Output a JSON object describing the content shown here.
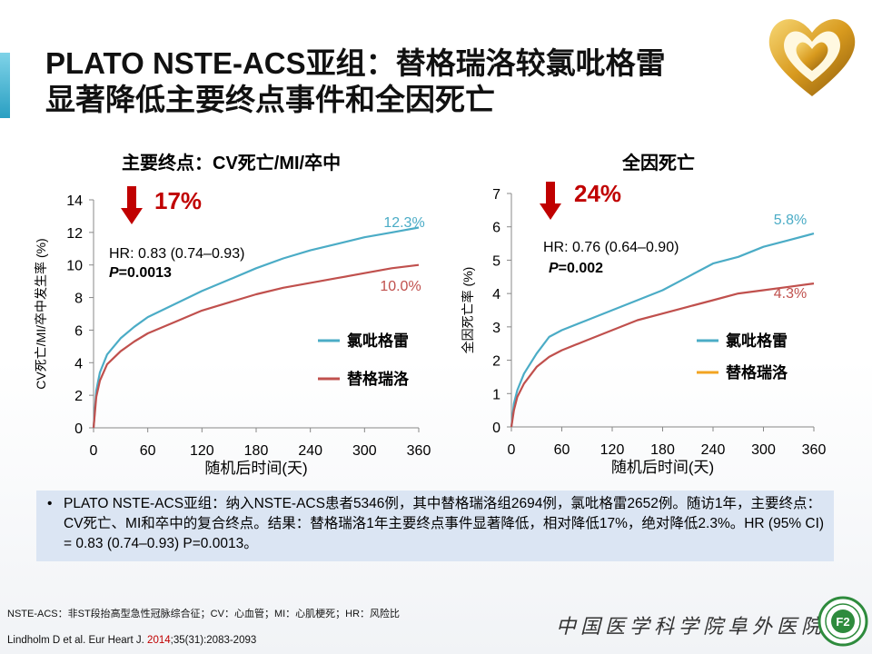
{
  "title_line1": "PLATO NSTE-ACS亚组：替格瑞洛较氯吡格雷",
  "title_line2": "显著降低主要终点事件和全因死亡",
  "colors": {
    "clopidogrel": "#4bacc6",
    "ticagrelor": "#c0504d",
    "ticagrelor_legend_right": "#f2a421",
    "arrow": "#c00000",
    "summary_bg": "#dbe5f3"
  },
  "icons": {
    "arrow": "down-arrow-icon",
    "logo": "heart-logo-icon",
    "hospital_logo": "fuwai-seal-icon"
  },
  "chart_data": [
    {
      "type": "line",
      "title": "主要终点：CV死亡/MI/卒中",
      "xlabel": "随机后时间(天)",
      "ylabel": "CV死亡/MI/卒中发生率 (%)",
      "xlim": [
        0,
        360
      ],
      "ylim": [
        0,
        14
      ],
      "x_ticks": [
        "0",
        "60",
        "120",
        "180",
        "240",
        "300",
        "360"
      ],
      "y_ticks": [
        "0",
        "2",
        "4",
        "6",
        "8",
        "10",
        "12",
        "14"
      ],
      "reduction": "17%",
      "hr_text": "HR: 0.83 (0.74–0.93)",
      "p_prefix": "P",
      "p_suffix": "=0.0013",
      "series": [
        {
          "name": "氯吡格雷",
          "end_label": "12.3%",
          "x": [
            0,
            3,
            7,
            15,
            30,
            45,
            60,
            90,
            120,
            150,
            180,
            210,
            240,
            270,
            300,
            330,
            360
          ],
          "values": [
            0,
            2.3,
            3.4,
            4.5,
            5.5,
            6.2,
            6.8,
            7.6,
            8.4,
            9.1,
            9.8,
            10.4,
            10.9,
            11.3,
            11.7,
            12.0,
            12.3
          ]
        },
        {
          "name": "替格瑞洛",
          "end_label": "10.0%",
          "x": [
            0,
            3,
            7,
            15,
            30,
            45,
            60,
            90,
            120,
            150,
            180,
            210,
            240,
            270,
            300,
            330,
            360
          ],
          "values": [
            0,
            1.9,
            2.9,
            3.9,
            4.7,
            5.3,
            5.8,
            6.5,
            7.2,
            7.7,
            8.2,
            8.6,
            8.9,
            9.2,
            9.5,
            9.8,
            10.0
          ]
        }
      ],
      "legend": "right"
    },
    {
      "type": "line",
      "title": "全因死亡",
      "xlabel": "随机后时间(天)",
      "ylabel": "全因死亡率 (%)",
      "xlim": [
        0,
        360
      ],
      "ylim": [
        0,
        7
      ],
      "x_ticks": [
        "0",
        "60",
        "120",
        "180",
        "240",
        "300",
        "360"
      ],
      "y_ticks": [
        "0",
        "1",
        "2",
        "3",
        "4",
        "5",
        "6",
        "7"
      ],
      "reduction": "24%",
      "hr_text": "HR: 0.76 (0.64–0.90)",
      "p_prefix": "P",
      "p_suffix": "=0.002",
      "series": [
        {
          "name": "氯吡格雷",
          "end_label": "5.8%",
          "x": [
            0,
            3,
            7,
            15,
            30,
            45,
            60,
            90,
            120,
            150,
            180,
            210,
            240,
            270,
            300,
            330,
            360
          ],
          "values": [
            0,
            0.7,
            1.1,
            1.6,
            2.2,
            2.7,
            2.9,
            3.2,
            3.5,
            3.8,
            4.1,
            4.5,
            4.9,
            5.1,
            5.4,
            5.6,
            5.8
          ]
        },
        {
          "name": "替格瑞洛",
          "end_label": "4.3%",
          "x": [
            0,
            3,
            7,
            15,
            30,
            45,
            60,
            90,
            120,
            150,
            180,
            210,
            240,
            270,
            300,
            330,
            360
          ],
          "values": [
            0,
            0.5,
            0.9,
            1.3,
            1.8,
            2.1,
            2.3,
            2.6,
            2.9,
            3.2,
            3.4,
            3.6,
            3.8,
            4.0,
            4.1,
            4.2,
            4.3
          ]
        }
      ],
      "legend": "right"
    }
  ],
  "summary": "PLATO NSTE-ACS亚组：纳入NSTE-ACS患者5346例，其中替格瑞洛组2694例，氯吡格雷2652例。随访1年，主要终点：CV死亡、MI和卒中的复合终点。结果：替格瑞洛1年主要终点事件显著降低，相对降低17%，绝对降低2.3%。HR (95% CI) = 0.83 (0.74–0.93) P=0.0013。",
  "footnote": "NSTE-ACS：非ST段抬高型急性冠脉综合征；CV：心血管；MI：心肌梗死；HR：风险比",
  "reference_prefix": "Lindholm  D et al. Eur Heart J. ",
  "reference_year": "2014",
  "reference_suffix": ";35(31):2083-2093",
  "hospital": "中国医学科学院阜外医院",
  "hospital_logo_text": "F2"
}
